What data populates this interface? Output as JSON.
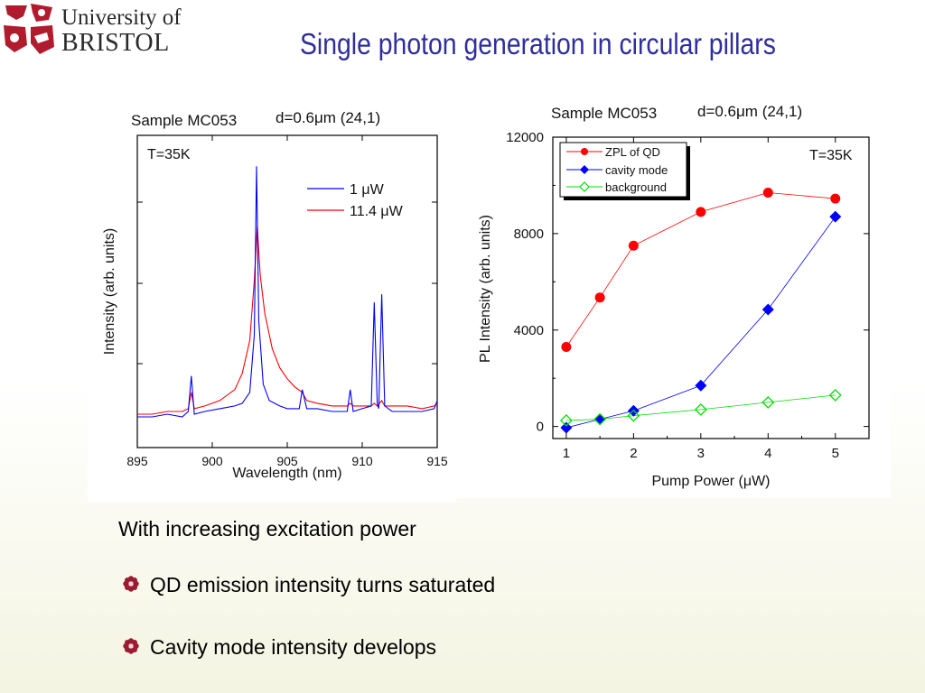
{
  "slide": {
    "logo_top": "University of",
    "logo_bottom": "BRISTOL",
    "title": "Single photon generation in circular pillars",
    "intro": "With increasing excitation power",
    "bullets": [
      "QD emission intensity turns saturated",
      "Cavity mode intensity develops"
    ],
    "bullet_icon": "flower-bullet-icon",
    "colors": {
      "title": "#2e2e9e",
      "logo": "#b01c2e",
      "bullet": "#9b1b30"
    }
  },
  "chart_data": [
    {
      "type": "line",
      "sample_label": "Sample MC053",
      "sample_param": "d=0.6μm (24,1)",
      "temperature_label": "T=35K",
      "xlabel": "Wavelength (nm)",
      "ylabel": "Intensity (arb. units)",
      "xlim": [
        895,
        915
      ],
      "x_ticks": [
        "895",
        "900",
        "905",
        "910",
        "915"
      ],
      "y_ticks_labeled": false,
      "legend_position": "top-right",
      "series": [
        {
          "name": "1 μW",
          "color": "#0000ff",
          "x": [
            895.0,
            896.0,
            897.0,
            898.0,
            898.4,
            898.6,
            898.8,
            899.5,
            900.5,
            901.5,
            902.0,
            902.5,
            902.8,
            902.95,
            903.1,
            903.4,
            903.8,
            904.5,
            905.0,
            905.8,
            906.0,
            906.3,
            907.0,
            908.0,
            909.0,
            909.2,
            909.4,
            910.0,
            910.6,
            910.8,
            911.0,
            911.1,
            911.3,
            911.5,
            912.0,
            913.0,
            914.0,
            914.8,
            915.0
          ],
          "y": [
            0.0,
            0.0,
            0.01,
            0.0,
            0.02,
            0.15,
            0.01,
            0.02,
            0.03,
            0.04,
            0.05,
            0.09,
            0.3,
            0.92,
            0.35,
            0.12,
            0.06,
            0.04,
            0.03,
            0.03,
            0.1,
            0.03,
            0.03,
            0.02,
            0.02,
            0.1,
            0.02,
            0.03,
            0.04,
            0.42,
            0.05,
            0.03,
            0.45,
            0.04,
            0.02,
            0.02,
            0.02,
            0.03,
            0.06
          ]
        },
        {
          "name": "11.4 μW",
          "color": "#ff0000",
          "x": [
            895.0,
            896.0,
            897.0,
            898.0,
            898.4,
            898.6,
            898.8,
            899.5,
            900.5,
            901.5,
            902.0,
            902.5,
            902.8,
            903.0,
            903.2,
            903.5,
            904.0,
            904.5,
            905.0,
            905.5,
            906.0,
            906.3,
            907.0,
            908.0,
            909.0,
            909.2,
            909.4,
            910.0,
            910.6,
            910.8,
            911.0,
            911.3,
            911.5,
            912.0,
            913.0,
            914.0,
            914.8,
            915.0
          ],
          "y": [
            0.01,
            0.01,
            0.02,
            0.02,
            0.03,
            0.09,
            0.03,
            0.04,
            0.06,
            0.1,
            0.16,
            0.28,
            0.5,
            0.7,
            0.52,
            0.38,
            0.25,
            0.18,
            0.14,
            0.11,
            0.09,
            0.06,
            0.05,
            0.04,
            0.04,
            0.05,
            0.04,
            0.04,
            0.04,
            0.05,
            0.04,
            0.06,
            0.04,
            0.04,
            0.04,
            0.03,
            0.04,
            0.05
          ]
        }
      ]
    },
    {
      "type": "scatter",
      "sample_label": "Sample MC053",
      "sample_param": "d=0.6μm (24,1)",
      "temperature_label": "T=35K",
      "xlabel": "Pump Power (μW)",
      "ylabel": "PL Intensity (arb. units)",
      "xlim": [
        0.8,
        5.5
      ],
      "ylim": [
        -500,
        12000
      ],
      "x_ticks": [
        "1",
        "2",
        "3",
        "4",
        "5"
      ],
      "y_ticks": [
        "0",
        "4000",
        "8000",
        "12000"
      ],
      "legend_position": "top-left",
      "series": [
        {
          "name": "ZPL of QD",
          "color": "#ff0000",
          "marker": "circle",
          "x": [
            1,
            1.5,
            2,
            3,
            4,
            5
          ],
          "y": [
            3300,
            5350,
            7500,
            8900,
            9700,
            9450
          ]
        },
        {
          "name": "cavity mode",
          "color": "#0000ff",
          "marker": "diamond",
          "x": [
            1,
            1.5,
            2,
            3,
            4,
            5
          ],
          "y": [
            -50,
            300,
            650,
            1700,
            4850,
            8700
          ]
        },
        {
          "name": "background",
          "color": "#00dd00",
          "marker": "open-diamond",
          "x": [
            1,
            1.5,
            2,
            3,
            4,
            5
          ],
          "y": [
            250,
            300,
            450,
            700,
            1000,
            1300
          ]
        }
      ]
    }
  ]
}
